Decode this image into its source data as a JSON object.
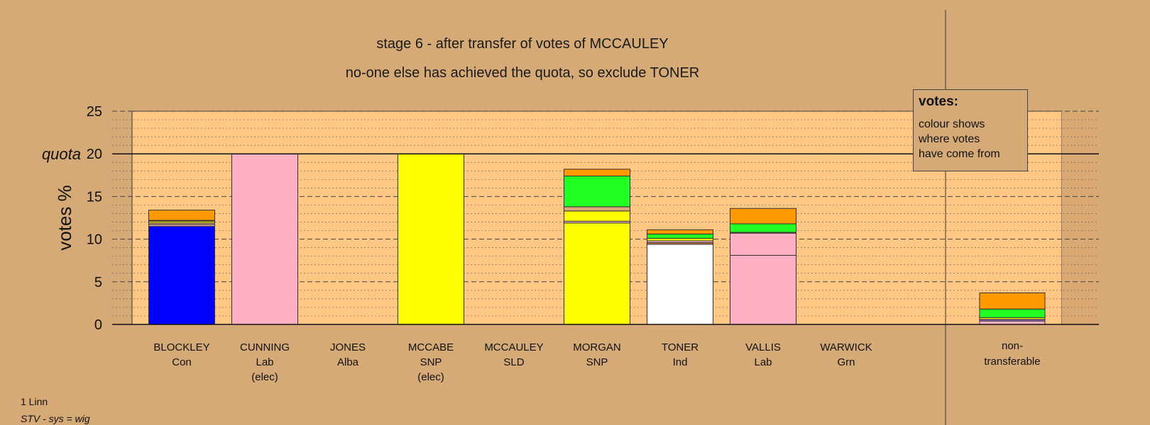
{
  "titles": {
    "line1": "stage 6 - after transfer of votes of MCCAULEY",
    "line2": "no-one else has achieved the quota, so exclude TONER"
  },
  "legend": {
    "title": "votes:",
    "lines": [
      "colour shows",
      "where votes",
      "have come from"
    ]
  },
  "footer": {
    "line1": "1 Linn",
    "line2": "STV - sys = wig"
  },
  "colors": {
    "background": "#d5aa77",
    "plot_area": "#ffc784",
    "blue": "#0000ff",
    "pink": "#ffb0c4",
    "yellow": "#ffff00",
    "orange": "#ff9900",
    "green": "#22ff22",
    "white": "#ffffff",
    "purple": "#9966cc",
    "brown": "#c87850",
    "tan": "#dba97c"
  },
  "chart_data": {
    "type": "bar",
    "stacked": true,
    "ylabel": "votes %",
    "yticks": [
      0,
      5,
      10,
      15,
      20,
      25
    ],
    "ylim": [
      0,
      25
    ],
    "quota": {
      "label": "quota",
      "value": 20
    },
    "grid": true,
    "legend_placement": "top-right",
    "categories": [
      {
        "name": "BLOCKLEY",
        "party": "Con",
        "status": "",
        "segments": [
          {
            "color": "blue",
            "value": 11.5
          },
          {
            "color": "pink",
            "value": 0.2
          },
          {
            "color": "tan",
            "value": 0.2
          },
          {
            "color": "yellow",
            "value": 0.2
          },
          {
            "color": "brown",
            "value": 0.1
          },
          {
            "color": "orange",
            "value": 1.2
          }
        ]
      },
      {
        "name": "CUNNING",
        "party": "Lab",
        "status": "(elec)",
        "segments": [
          {
            "color": "pink",
            "value": 20.0
          }
        ]
      },
      {
        "name": "JONES",
        "party": "Alba",
        "status": "",
        "segments": []
      },
      {
        "name": "MCCABE",
        "party": "SNP",
        "status": "(elec)",
        "segments": [
          {
            "color": "yellow",
            "value": 20.0
          }
        ]
      },
      {
        "name": "MCCAULEY",
        "party": "SLD",
        "status": "",
        "segments": []
      },
      {
        "name": "MORGAN",
        "party": "SNP",
        "status": "",
        "segments": [
          {
            "color": "yellow",
            "value": 11.9
          },
          {
            "color": "pink",
            "value": 0.2
          },
          {
            "color": "yellow",
            "value": 1.2
          },
          {
            "color": "tan",
            "value": 0.5
          },
          {
            "color": "green",
            "value": 3.6
          },
          {
            "color": "orange",
            "value": 0.8
          }
        ]
      },
      {
        "name": "TONER",
        "party": "Ind",
        "status": "",
        "segments": [
          {
            "color": "white",
            "value": 9.4
          },
          {
            "color": "brown",
            "value": 0.2
          },
          {
            "color": "pink",
            "value": 0.2
          },
          {
            "color": "yellow",
            "value": 0.3
          },
          {
            "color": "green",
            "value": 0.5
          },
          {
            "color": "orange",
            "value": 0.5
          }
        ]
      },
      {
        "name": "VALLIS",
        "party": "Lab",
        "status": "",
        "segments": [
          {
            "color": "pink",
            "value": 8.1
          },
          {
            "color": "pink",
            "value": 2.6
          },
          {
            "color": "brown",
            "value": 0.1
          },
          {
            "color": "green",
            "value": 1.0
          },
          {
            "color": "orange",
            "value": 1.8
          }
        ]
      },
      {
        "name": "WARWICK",
        "party": "Grn",
        "status": "",
        "segments": []
      }
    ],
    "non_transferable": {
      "label_line1": "non-",
      "label_line2": "transferable",
      "segments": [
        {
          "color": "pink",
          "value": 0.4
        },
        {
          "color": "purple",
          "value": 0.2
        },
        {
          "color": "yellow",
          "value": 0.2
        },
        {
          "color": "green",
          "value": 1.0
        },
        {
          "color": "orange",
          "value": 1.9
        }
      ]
    }
  }
}
